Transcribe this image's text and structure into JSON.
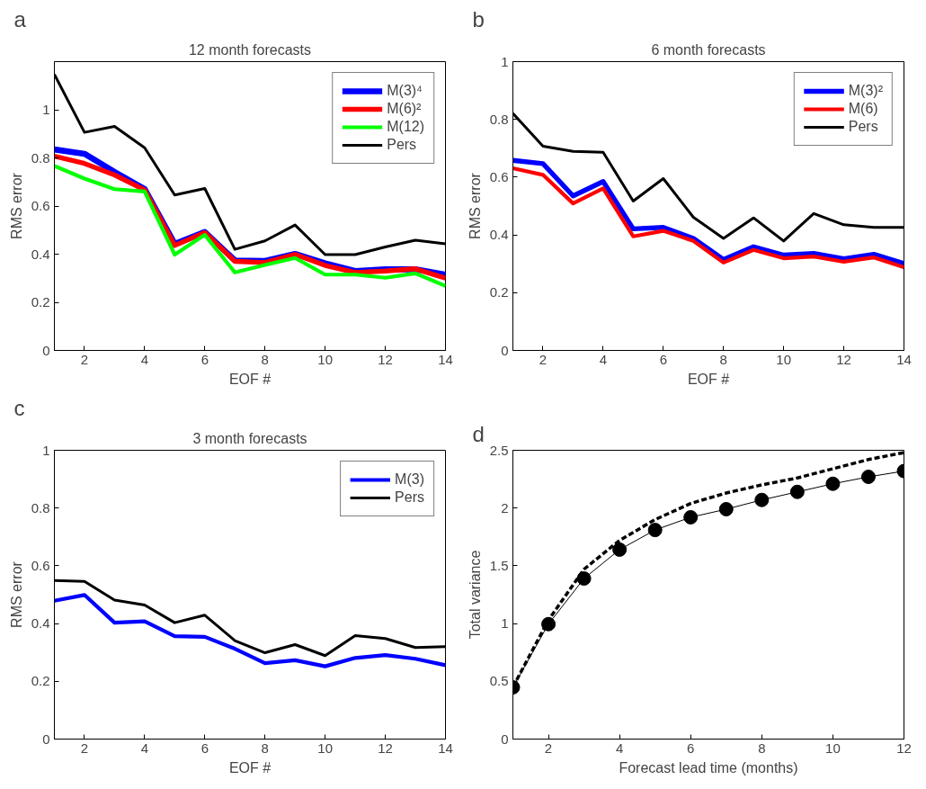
{
  "chart_data": [
    {
      "type": "line",
      "title": "12 month forecasts",
      "xlabel": "EOF #",
      "ylabel": "RMS error",
      "annotations": [
        "a"
      ],
      "xlim": [
        1,
        14
      ],
      "xticks": [
        2,
        4,
        6,
        8,
        10,
        12,
        14
      ],
      "ylim": [
        0,
        1.2
      ],
      "yticks": [
        0,
        0.2,
        0.4,
        0.6,
        0.8,
        1
      ],
      "grid": false,
      "legend": "top right",
      "x": [
        1,
        2,
        3,
        4,
        5,
        6,
        7,
        8,
        9,
        10,
        11,
        12,
        13,
        14
      ],
      "series": [
        {
          "name": "M(3)⁴",
          "color": "#0000ff",
          "values": [
            0.835,
            0.817,
            0.742,
            0.671,
            0.443,
            0.492,
            0.374,
            0.372,
            0.401,
            0.362,
            0.33,
            0.337,
            0.337,
            0.315
          ]
        },
        {
          "name": "M(6)²",
          "color": "#ff0000",
          "values": [
            0.807,
            0.777,
            0.729,
            0.667,
            0.436,
            0.49,
            0.37,
            0.365,
            0.399,
            0.353,
            0.324,
            0.33,
            0.339,
            0.3
          ]
        },
        {
          "name": "M(12)",
          "color": "#00ff00",
          "values": [
            0.767,
            0.714,
            0.67,
            0.66,
            0.398,
            0.48,
            0.324,
            0.355,
            0.384,
            0.315,
            0.315,
            0.302,
            0.32,
            0.268
          ]
        },
        {
          "name": "Pers",
          "color": "#000000",
          "values": [
            1.147,
            0.906,
            0.931,
            0.842,
            0.646,
            0.673,
            0.42,
            0.455,
            0.521,
            0.398,
            0.398,
            0.43,
            0.458,
            0.443
          ]
        }
      ]
    },
    {
      "type": "line",
      "title": "6 month forecasts",
      "xlabel": "EOF #",
      "ylabel": "RMS error",
      "annotations": [
        "b"
      ],
      "xlim": [
        1,
        14
      ],
      "xticks": [
        2,
        4,
        6,
        8,
        10,
        12,
        14
      ],
      "ylim": [
        0,
        1
      ],
      "yticks": [
        0,
        0.2,
        0.4,
        0.6,
        0.8,
        1
      ],
      "grid": false,
      "legend": "top right",
      "x": [
        1,
        2,
        3,
        4,
        5,
        6,
        7,
        8,
        9,
        10,
        11,
        12,
        13,
        14
      ],
      "series": [
        {
          "name": "M(3)²",
          "color": "#0000ff",
          "values": [
            0.658,
            0.647,
            0.535,
            0.585,
            0.421,
            0.426,
            0.388,
            0.315,
            0.359,
            0.33,
            0.336,
            0.317,
            0.333,
            0.301
          ]
        },
        {
          "name": "M(6)",
          "color": "#ff0000",
          "values": [
            0.631,
            0.608,
            0.509,
            0.561,
            0.395,
            0.414,
            0.379,
            0.304,
            0.348,
            0.319,
            0.325,
            0.307,
            0.322,
            0.288
          ]
        },
        {
          "name": "Pers",
          "color": "#000000",
          "values": [
            0.821,
            0.707,
            0.689,
            0.686,
            0.517,
            0.595,
            0.461,
            0.388,
            0.459,
            0.379,
            0.474,
            0.435,
            0.426,
            0.426
          ]
        }
      ]
    },
    {
      "type": "line",
      "title": "3 month forecasts",
      "xlabel": "EOF #",
      "ylabel": "RMS error",
      "annotations": [
        "c"
      ],
      "xlim": [
        1,
        14
      ],
      "xticks": [
        2,
        4,
        6,
        8,
        10,
        12,
        14
      ],
      "ylim": [
        0,
        1
      ],
      "yticks": [
        0,
        0.2,
        0.4,
        0.6,
        0.8,
        1
      ],
      "grid": false,
      "legend": "top right",
      "x": [
        1,
        2,
        3,
        4,
        5,
        6,
        7,
        8,
        9,
        10,
        11,
        12,
        13,
        14
      ],
      "series": [
        {
          "name": "M(3)",
          "color": "#0000ff",
          "values": [
            0.479,
            0.499,
            0.403,
            0.408,
            0.356,
            0.354,
            0.313,
            0.263,
            0.273,
            0.252,
            0.281,
            0.291,
            0.278,
            0.256
          ]
        },
        {
          "name": "Pers",
          "color": "#000000",
          "values": [
            0.549,
            0.546,
            0.481,
            0.464,
            0.403,
            0.429,
            0.341,
            0.299,
            0.327,
            0.289,
            0.358,
            0.348,
            0.317,
            0.32
          ]
        }
      ]
    },
    {
      "type": "line",
      "xlabel": "Forecast lead time (months)",
      "ylabel": "Total variance",
      "annotations": [
        "d"
      ],
      "xlim": [
        1,
        12
      ],
      "xticks": [
        2,
        4,
        6,
        8,
        10,
        12
      ],
      "ylim": [
        0,
        2.5
      ],
      "yticks": [
        0,
        0.5,
        1,
        1.5,
        2,
        2.5
      ],
      "grid": false,
      "x": [
        1,
        2,
        3,
        4,
        5,
        6,
        7,
        8,
        9,
        10,
        11,
        12
      ],
      "series": [
        {
          "color": "#000000",
          "marker": "circle",
          "line_style": "solid",
          "values": [
            0.448,
            0.995,
            1.39,
            1.64,
            1.81,
            1.92,
            1.99,
            2.07,
            2.14,
            2.21,
            2.27,
            2.32
          ]
        },
        {
          "color": "#000000",
          "marker": "none",
          "line_style": "dashed",
          "values": [
            0.45,
            1.03,
            1.47,
            1.72,
            1.9,
            2.04,
            2.13,
            2.2,
            2.26,
            2.34,
            2.42,
            2.48
          ]
        }
      ]
    }
  ]
}
